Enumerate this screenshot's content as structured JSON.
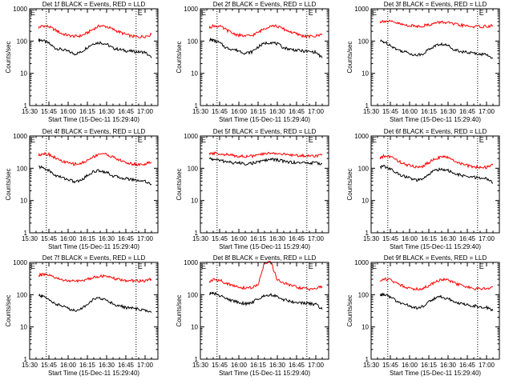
{
  "figure": {
    "ylabel": "Counts/sec",
    "xlabel": "Start Time (15-Dec-11 15:29:40)",
    "x_tick_labels": [
      "15:30",
      "15:45",
      "16:00",
      "16:15",
      "16:30",
      "16:45",
      "17:00"
    ],
    "y_tick_labels": [
      "1",
      "10",
      "100",
      "1000"
    ],
    "flag_letter": "E"
  },
  "colors": {
    "events": "#000000",
    "lld": "#ff0000",
    "axes": "#000000",
    "background": "#ffffff"
  },
  "chart_data": [
    {
      "type": "line",
      "title": "Det 1f BLACK = Events, RED = LLD",
      "xlabel": "Start Time (15-Dec-11 15:29:40)",
      "ylabel": "Counts/sec",
      "yscale": "log",
      "ylim": [
        1,
        1000
      ],
      "xlim": [
        "15:30",
        "17:10"
      ],
      "markers": [
        "15:43",
        "16:53"
      ],
      "x": [
        "15:37",
        "15:40",
        "15:45",
        "15:50",
        "15:55",
        "16:00",
        "16:05",
        "16:10",
        "16:15",
        "16:20",
        "16:25",
        "16:30",
        "16:35",
        "16:40",
        "16:45",
        "16:50",
        "16:55",
        "17:00",
        "17:05"
      ],
      "series": [
        {
          "name": "Events",
          "values": [
            110,
            105,
            85,
            60,
            55,
            48,
            40,
            45,
            65,
            85,
            90,
            80,
            60,
            55,
            50,
            48,
            46,
            45,
            30
          ]
        },
        {
          "name": "LLD",
          "values": [
            260,
            300,
            280,
            220,
            170,
            150,
            140,
            145,
            180,
            240,
            300,
            280,
            230,
            190,
            160,
            140,
            135,
            140,
            160
          ]
        }
      ]
    },
    {
      "type": "line",
      "title": "Det 2f BLACK = Events, RED = LLD",
      "xlabel": "Start Time (15-Dec-11 15:29:40)",
      "ylabel": "Counts/sec",
      "yscale": "log",
      "ylim": [
        1,
        1000
      ],
      "xlim": [
        "15:30",
        "17:10"
      ],
      "markers": [
        "15:43",
        "16:53"
      ],
      "x": [
        "15:37",
        "15:40",
        "15:45",
        "15:50",
        "15:55",
        "16:00",
        "16:05",
        "16:10",
        "16:15",
        "16:20",
        "16:25",
        "16:30",
        "16:35",
        "16:40",
        "16:45",
        "16:50",
        "16:55",
        "17:00",
        "17:05"
      ],
      "series": [
        {
          "name": "Events",
          "values": [
            110,
            105,
            88,
            62,
            56,
            50,
            42,
            46,
            66,
            85,
            92,
            82,
            62,
            56,
            52,
            49,
            47,
            45,
            30
          ]
        },
        {
          "name": "LLD",
          "values": [
            260,
            300,
            285,
            225,
            175,
            152,
            142,
            148,
            185,
            245,
            305,
            285,
            235,
            195,
            165,
            145,
            138,
            142,
            165
          ]
        }
      ]
    },
    {
      "type": "line",
      "title": "Det 3f BLACK = Events, RED = LLD",
      "xlabel": "Start Time (15-Dec-11 15:29:40)",
      "ylabel": "Counts/sec",
      "yscale": "log",
      "ylim": [
        1,
        1000
      ],
      "xlim": [
        "15:30",
        "17:10"
      ],
      "markers": [
        "15:43",
        "16:53"
      ],
      "x": [
        "15:37",
        "15:40",
        "15:45",
        "15:50",
        "15:55",
        "16:00",
        "16:05",
        "16:10",
        "16:15",
        "16:20",
        "16:25",
        "16:30",
        "16:35",
        "16:40",
        "16:45",
        "16:50",
        "16:55",
        "17:00",
        "17:05"
      ],
      "series": [
        {
          "name": "Events",
          "values": [
            100,
            95,
            75,
            55,
            48,
            42,
            36,
            40,
            55,
            72,
            80,
            72,
            55,
            48,
            44,
            42,
            40,
            38,
            30
          ]
        },
        {
          "name": "LLD",
          "values": [
            400,
            420,
            400,
            360,
            320,
            300,
            290,
            295,
            320,
            360,
            390,
            370,
            330,
            310,
            290,
            280,
            280,
            285,
            300
          ]
        }
      ]
    },
    {
      "type": "line",
      "title": "Det 4f BLACK = Events, RED = LLD",
      "xlabel": "Start Time (15-Dec-11 15:29:40)",
      "ylabel": "Counts/sec",
      "yscale": "log",
      "ylim": [
        1,
        1000
      ],
      "xlim": [
        "15:30",
        "17:10"
      ],
      "markers": [
        "15:43",
        "16:53"
      ],
      "x": [
        "15:37",
        "15:40",
        "15:45",
        "15:50",
        "15:55",
        "16:00",
        "16:05",
        "16:10",
        "16:15",
        "16:20",
        "16:25",
        "16:30",
        "16:35",
        "16:40",
        "16:45",
        "16:50",
        "16:55",
        "17:00",
        "17:05"
      ],
      "series": [
        {
          "name": "Events",
          "values": [
            110,
            105,
            85,
            60,
            52,
            45,
            38,
            42,
            60,
            80,
            85,
            75,
            58,
            52,
            48,
            45,
            42,
            40,
            32
          ]
        },
        {
          "name": "LLD",
          "values": [
            250,
            290,
            270,
            210,
            165,
            145,
            135,
            140,
            175,
            230,
            290,
            270,
            220,
            180,
            150,
            135,
            130,
            135,
            155
          ]
        }
      ]
    },
    {
      "type": "line",
      "title": "Det 5f BLACK = Events, RED = LLD",
      "xlabel": "Start Time (15-Dec-11 15:29:40)",
      "ylabel": "Counts/sec",
      "yscale": "log",
      "ylim": [
        1,
        1000
      ],
      "xlim": [
        "15:30",
        "17:10"
      ],
      "markers": [
        "15:43",
        "16:53"
      ],
      "x": [
        "15:37",
        "15:40",
        "15:45",
        "15:50",
        "15:55",
        "16:00",
        "16:05",
        "16:10",
        "16:15",
        "16:20",
        "16:25",
        "16:30",
        "16:35",
        "16:40",
        "16:45",
        "16:50",
        "16:55",
        "17:00",
        "17:05"
      ],
      "series": [
        {
          "name": "Events",
          "values": [
            200,
            190,
            175,
            160,
            150,
            145,
            140,
            142,
            155,
            175,
            190,
            180,
            165,
            155,
            150,
            148,
            146,
            145,
            140
          ]
        },
        {
          "name": "LLD",
          "values": [
            270,
            290,
            285,
            265,
            250,
            240,
            235,
            238,
            255,
            280,
            300,
            290,
            270,
            258,
            250,
            245,
            242,
            245,
            260
          ]
        }
      ]
    },
    {
      "type": "line",
      "title": "Det 6f BLACK = Events, RED = LLD",
      "xlabel": "Start Time (15-Dec-11 15:29:40)",
      "ylabel": "Counts/sec",
      "yscale": "log",
      "ylim": [
        1,
        1000
      ],
      "xlim": [
        "15:30",
        "17:10"
      ],
      "markers": [
        "15:43",
        "16:53"
      ],
      "x": [
        "15:37",
        "15:40",
        "15:45",
        "15:50",
        "15:55",
        "16:00",
        "16:05",
        "16:10",
        "16:15",
        "16:20",
        "16:25",
        "16:30",
        "16:35",
        "16:40",
        "16:45",
        "16:50",
        "16:55",
        "17:00",
        "17:05"
      ],
      "series": [
        {
          "name": "Events",
          "values": [
            110,
            115,
            95,
            70,
            58,
            50,
            42,
            45,
            65,
            88,
            95,
            85,
            68,
            60,
            55,
            52,
            50,
            48,
            35
          ]
        },
        {
          "name": "LLD",
          "values": [
            200,
            240,
            230,
            180,
            140,
            120,
            110,
            115,
            150,
            200,
            230,
            210,
            170,
            140,
            120,
            110,
            105,
            108,
            125
          ]
        }
      ]
    },
    {
      "type": "line",
      "title": "Det 7f BLACK = Events, RED = LLD",
      "xlabel": "Start Time (15-Dec-11 15:29:40)",
      "ylabel": "Counts/sec",
      "yscale": "log",
      "ylim": [
        1,
        1000
      ],
      "xlim": [
        "15:30",
        "17:10"
      ],
      "markers": [
        "15:43",
        "16:53"
      ],
      "x": [
        "15:37",
        "15:40",
        "15:45",
        "15:50",
        "15:55",
        "16:00",
        "16:05",
        "16:10",
        "16:15",
        "16:20",
        "16:25",
        "16:30",
        "16:35",
        "16:40",
        "16:45",
        "16:50",
        "16:55",
        "17:00",
        "17:05"
      ],
      "series": [
        {
          "name": "Events",
          "values": [
            95,
            90,
            72,
            52,
            45,
            38,
            32,
            36,
            52,
            72,
            78,
            68,
            52,
            45,
            40,
            38,
            35,
            33,
            28
          ]
        },
        {
          "name": "LLD",
          "values": [
            400,
            420,
            390,
            330,
            290,
            270,
            260,
            265,
            300,
            350,
            380,
            360,
            320,
            290,
            275,
            270,
            265,
            270,
            300
          ]
        }
      ]
    },
    {
      "type": "line",
      "title": "Det 8f BLACK = Events, RED = LLD",
      "xlabel": "Start Time (15-Dec-11 15:29:40)",
      "ylabel": "Counts/sec",
      "yscale": "log",
      "ylim": [
        1,
        1000
      ],
      "xlim": [
        "15:30",
        "17:10"
      ],
      "markers": [
        "15:43",
        "16:53"
      ],
      "x": [
        "15:37",
        "15:40",
        "15:45",
        "15:50",
        "15:55",
        "16:00",
        "16:05",
        "16:10",
        "16:15",
        "16:20",
        "16:25",
        "16:30",
        "16:35",
        "16:40",
        "16:45",
        "16:50",
        "16:55",
        "17:00",
        "17:05"
      ],
      "series": [
        {
          "name": "Events",
          "values": [
            110,
            110,
            95,
            75,
            65,
            58,
            52,
            56,
            75,
            95,
            100,
            90,
            70,
            62,
            58,
            55,
            52,
            50,
            35
          ]
        },
        {
          "name": "LLD",
          "values": [
            250,
            290,
            280,
            230,
            190,
            170,
            160,
            165,
            200,
            1000,
            1000,
            280,
            230,
            195,
            170,
            155,
            150,
            155,
            180
          ]
        }
      ]
    },
    {
      "type": "line",
      "title": "Det 9f BLACK = Events, RED = LLD",
      "xlabel": "Start Time (15-Dec-11 15:29:40)",
      "ylabel": "Counts/sec",
      "yscale": "log",
      "ylim": [
        1,
        1000
      ],
      "xlim": [
        "15:30",
        "17:10"
      ],
      "markers": [
        "15:43",
        "16:53"
      ],
      "x": [
        "15:37",
        "15:40",
        "15:45",
        "15:50",
        "15:55",
        "16:00",
        "16:05",
        "16:10",
        "16:15",
        "16:20",
        "16:25",
        "16:30",
        "16:35",
        "16:40",
        "16:45",
        "16:50",
        "16:55",
        "17:00",
        "17:05"
      ],
      "series": [
        {
          "name": "Events",
          "values": [
            100,
            100,
            85,
            62,
            52,
            45,
            38,
            42,
            60,
            80,
            85,
            76,
            60,
            52,
            48,
            45,
            42,
            40,
            32
          ]
        },
        {
          "name": "LLD",
          "values": [
            260,
            310,
            290,
            230,
            185,
            160,
            150,
            155,
            190,
            250,
            300,
            280,
            230,
            195,
            170,
            155,
            150,
            155,
            175
          ]
        }
      ]
    }
  ]
}
